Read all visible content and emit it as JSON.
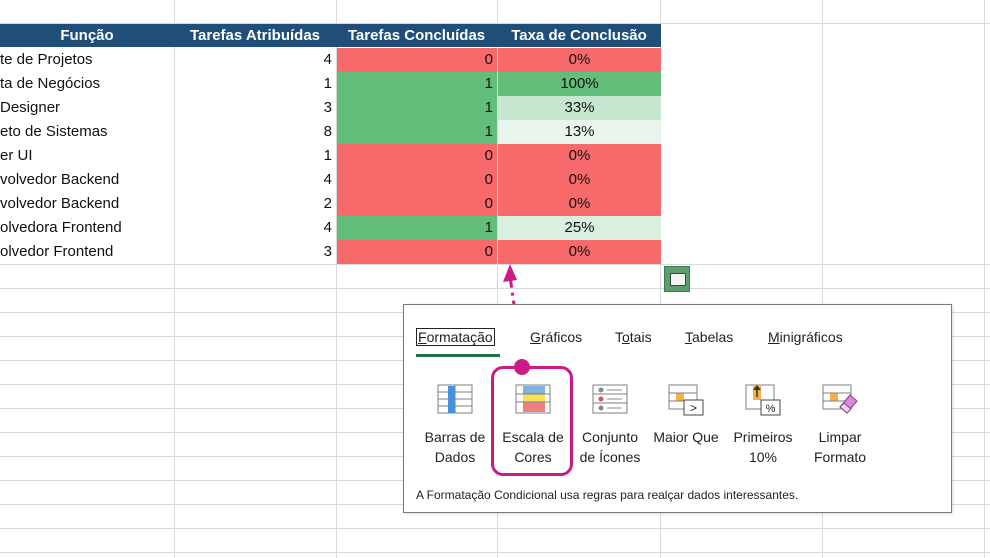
{
  "table": {
    "headers": {
      "funcao": "Função",
      "atribuidas": "Tarefas Atribuídas",
      "concluidas": "Tarefas Concluídas",
      "taxa": "Taxa de Conclusão"
    },
    "rows": [
      {
        "funcao": "te de Projetos",
        "atribuidas": "4",
        "concluidas": "0",
        "taxa": "0%",
        "conc_color": "red",
        "taxa_color": "#f8696b"
      },
      {
        "funcao": "ta de Negócios",
        "atribuidas": "1",
        "concluidas": "1",
        "taxa": "100%",
        "conc_color": "green",
        "taxa_color": "#63be7b"
      },
      {
        "funcao": " Designer",
        "atribuidas": "3",
        "concluidas": "1",
        "taxa": "33%",
        "conc_color": "green",
        "taxa_color": "#c6e6cf"
      },
      {
        "funcao": "eto de Sistemas",
        "atribuidas": "8",
        "concluidas": "1",
        "taxa": "13%",
        "conc_color": "green",
        "taxa_color": "#e9f4ec"
      },
      {
        "funcao": "er UI",
        "atribuidas": "1",
        "concluidas": "0",
        "taxa": "0%",
        "conc_color": "red",
        "taxa_color": "#f8696b"
      },
      {
        "funcao": "volvedor Backend",
        "atribuidas": "4",
        "concluidas": "0",
        "taxa": "0%",
        "conc_color": "red",
        "taxa_color": "#f8696b"
      },
      {
        "funcao": "volvedor Backend",
        "atribuidas": "2",
        "concluidas": "0",
        "taxa": "0%",
        "conc_color": "red",
        "taxa_color": "#f8696b"
      },
      {
        "funcao": "olvedora Frontend",
        "atribuidas": "4",
        "concluidas": "1",
        "taxa": "25%",
        "conc_color": "green",
        "taxa_color": "#d9efe0"
      },
      {
        "funcao": "olvedor Frontend",
        "atribuidas": "3",
        "concluidas": "0",
        "taxa": "0%",
        "conc_color": "red",
        "taxa_color": "#f8696b"
      }
    ]
  },
  "quick_analysis": {
    "tabs": [
      "Formatação",
      "Gráficos",
      "Totais",
      "Tabelas",
      "Minigráficos"
    ],
    "active_tab": "Formatação",
    "tools": [
      {
        "line1": "Barras de",
        "line2": "Dados",
        "icon": "data-bars-icon"
      },
      {
        "line1": "Escala de",
        "line2": "Cores",
        "icon": "color-scale-icon"
      },
      {
        "line1": "Conjunto",
        "line2": "de Ícones",
        "icon": "icon-set-icon"
      },
      {
        "line1": "Maior Que",
        "line2": "",
        "icon": "greater-than-icon"
      },
      {
        "line1": "Primeiros",
        "line2": "10%",
        "icon": "top-ten-icon"
      },
      {
        "line1": "Limpar",
        "line2": "Formato",
        "icon": "clear-format-icon"
      }
    ],
    "footer": "A Formatação Condicional usa regras para realçar dados interessantes."
  },
  "colors": {
    "header_bg": "#1f4e79",
    "red": "#f8696b",
    "green": "#63be7b",
    "highlight": "#cc1b84",
    "excel_green": "#217346"
  }
}
